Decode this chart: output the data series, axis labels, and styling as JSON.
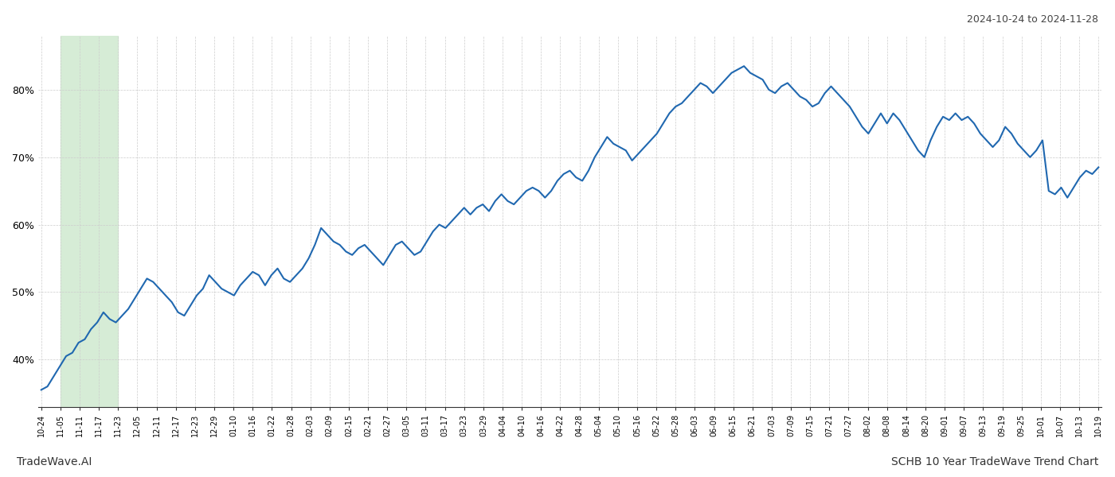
{
  "title_top_right": "2024-10-24 to 2024-11-28",
  "title_bottom_left": "TradeWave.AI",
  "title_bottom_right": "SCHB 10 Year TradeWave Trend Chart",
  "line_color": "#2068b0",
  "line_width": 1.5,
  "shaded_region_color": "#d6ecd6",
  "ylim": [
    33,
    88
  ],
  "yticks": [
    40,
    50,
    60,
    70,
    80
  ],
  "background_color": "#ffffff",
  "grid_color": "#cccccc",
  "x_labels": [
    "10-24",
    "11-05",
    "11-11",
    "11-17",
    "11-23",
    "12-05",
    "12-11",
    "12-17",
    "12-23",
    "12-29",
    "01-10",
    "01-16",
    "01-22",
    "01-28",
    "02-03",
    "02-09",
    "02-15",
    "02-21",
    "02-27",
    "03-05",
    "03-11",
    "03-17",
    "03-23",
    "03-29",
    "04-04",
    "04-10",
    "04-16",
    "04-22",
    "04-28",
    "05-04",
    "05-10",
    "05-16",
    "05-22",
    "05-28",
    "06-03",
    "06-09",
    "06-15",
    "06-21",
    "07-03",
    "07-09",
    "07-15",
    "07-21",
    "07-27",
    "08-02",
    "08-08",
    "08-14",
    "08-20",
    "09-01",
    "09-07",
    "09-13",
    "09-19",
    "09-25",
    "10-01",
    "10-07",
    "10-13",
    "10-19"
  ],
  "values": [
    35.5,
    36.0,
    37.5,
    39.0,
    40.5,
    41.0,
    42.5,
    43.0,
    44.5,
    45.5,
    47.0,
    46.0,
    45.5,
    46.5,
    47.5,
    49.0,
    50.5,
    52.0,
    51.5,
    50.5,
    49.5,
    48.5,
    47.0,
    46.5,
    48.0,
    49.5,
    50.5,
    52.5,
    51.5,
    50.5,
    50.0,
    49.5,
    51.0,
    52.0,
    53.0,
    52.5,
    51.0,
    52.5,
    53.5,
    52.0,
    51.5,
    52.5,
    53.5,
    55.0,
    57.0,
    59.5,
    58.5,
    57.5,
    57.0,
    56.0,
    55.5,
    56.5,
    57.0,
    56.0,
    55.0,
    54.0,
    55.5,
    57.0,
    57.5,
    56.5,
    55.5,
    56.0,
    57.5,
    59.0,
    60.0,
    59.5,
    60.5,
    61.5,
    62.5,
    61.5,
    62.5,
    63.0,
    62.0,
    63.5,
    64.5,
    63.5,
    63.0,
    64.0,
    65.0,
    65.5,
    65.0,
    64.0,
    65.0,
    66.5,
    67.5,
    68.0,
    67.0,
    66.5,
    68.0,
    70.0,
    71.5,
    73.0,
    72.0,
    71.5,
    71.0,
    69.5,
    70.5,
    71.5,
    72.5,
    73.5,
    75.0,
    76.5,
    77.5,
    78.0,
    79.0,
    80.0,
    81.0,
    80.5,
    79.5,
    80.5,
    81.5,
    82.5,
    83.0,
    83.5,
    82.5,
    82.0,
    81.5,
    80.0,
    79.5,
    80.5,
    81.0,
    80.0,
    79.0,
    78.5,
    77.5,
    78.0,
    79.5,
    80.5,
    79.5,
    78.5,
    77.5,
    76.0,
    74.5,
    73.5,
    75.0,
    76.5,
    75.0,
    76.5,
    75.5,
    74.0,
    72.5,
    71.0,
    70.0,
    72.5,
    74.5,
    76.0,
    75.5,
    76.5,
    75.5,
    76.0,
    75.0,
    73.5,
    72.5,
    71.5,
    72.5,
    74.5,
    73.5,
    72.0,
    71.0,
    70.0,
    71.0,
    72.5,
    65.0,
    64.5,
    65.5,
    64.0,
    65.5,
    67.0,
    68.0,
    67.5,
    68.5
  ],
  "shade_label_start": "11-05",
  "shade_label_end": "11-23"
}
